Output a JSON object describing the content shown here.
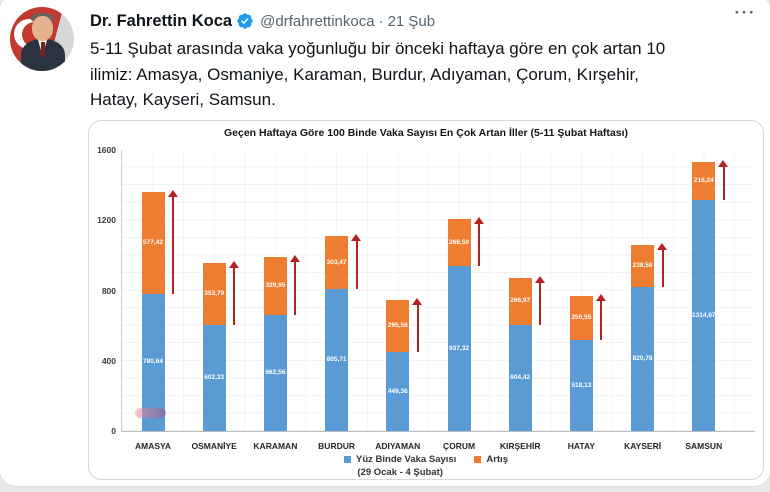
{
  "tweet": {
    "author": "Dr. Fahrettin Koca",
    "handle": "@drfahrettinkoca",
    "separator": "·",
    "timestamp": "21 Şub",
    "more_label": "···",
    "body_lines": [
      "5-11 Şubat arasında vaka yoğunluğu bir önceki haftaya göre en çok artan 10",
      "ilimiz: Amasya, Osmaniye, Karaman, Burdur, Adıyaman, Çorum, Kırşehir,",
      "Hatay, Kayseri, Samsun."
    ],
    "verified_badge_color": "#1d9bf0"
  },
  "chart_data": {
    "type": "bar",
    "stacked": true,
    "title": "Geçen Haftaya Göre 100 Binde Vaka Sayısı En Çok Artan İller (5-11 Şubat Haftası)",
    "categories": [
      "AMASYA",
      "OSMANİYE",
      "KARAMAN",
      "BURDUR",
      "ADIYAMAN",
      "ÇORUM",
      "KIRŞEHİR",
      "HATAY",
      "KAYSERİ",
      "SAMSUN"
    ],
    "series": [
      {
        "name": "Yüz Binde Vaka Sayısı (29 Ocak - 4 Şubat)",
        "color": "#5B9BD5",
        "values": [
          780.64,
          602.33,
          662.56,
          805.71,
          449.36,
          937.32,
          604.42,
          518.13,
          820.78,
          1314.67
        ],
        "labels": [
          "780,64",
          "602,33",
          "662,56",
          "805,71",
          "449,36",
          "937,32",
          "604,42",
          "518,13",
          "820,78",
          "1314,67"
        ]
      },
      {
        "name": "Artış",
        "color": "#ED7D31",
        "values": [
          577.42,
          353.79,
          329.95,
          303.47,
          295.56,
          268.5,
          266.97,
          250.55,
          238.58,
          216.24
        ],
        "labels": [
          "577,42",
          "353,79",
          "329,95",
          "303,47",
          "295,56",
          "268,50",
          "266,97",
          "250,55",
          "238,58",
          "216,24"
        ]
      }
    ],
    "ylim": [
      0,
      1600
    ],
    "yticks": [
      0,
      400,
      800,
      1200,
      1600
    ],
    "grid": true,
    "arrow_color": "#B22222",
    "legend": {
      "position": "bottom",
      "items": [
        {
          "label": "Yüz Binde Vaka Sayısı",
          "sublabel": "(29 Ocak - 4 Şubat)",
          "color": "#5B9BD5"
        },
        {
          "label": "Artış",
          "sublabel": "",
          "color": "#ED7D31"
        }
      ]
    }
  }
}
